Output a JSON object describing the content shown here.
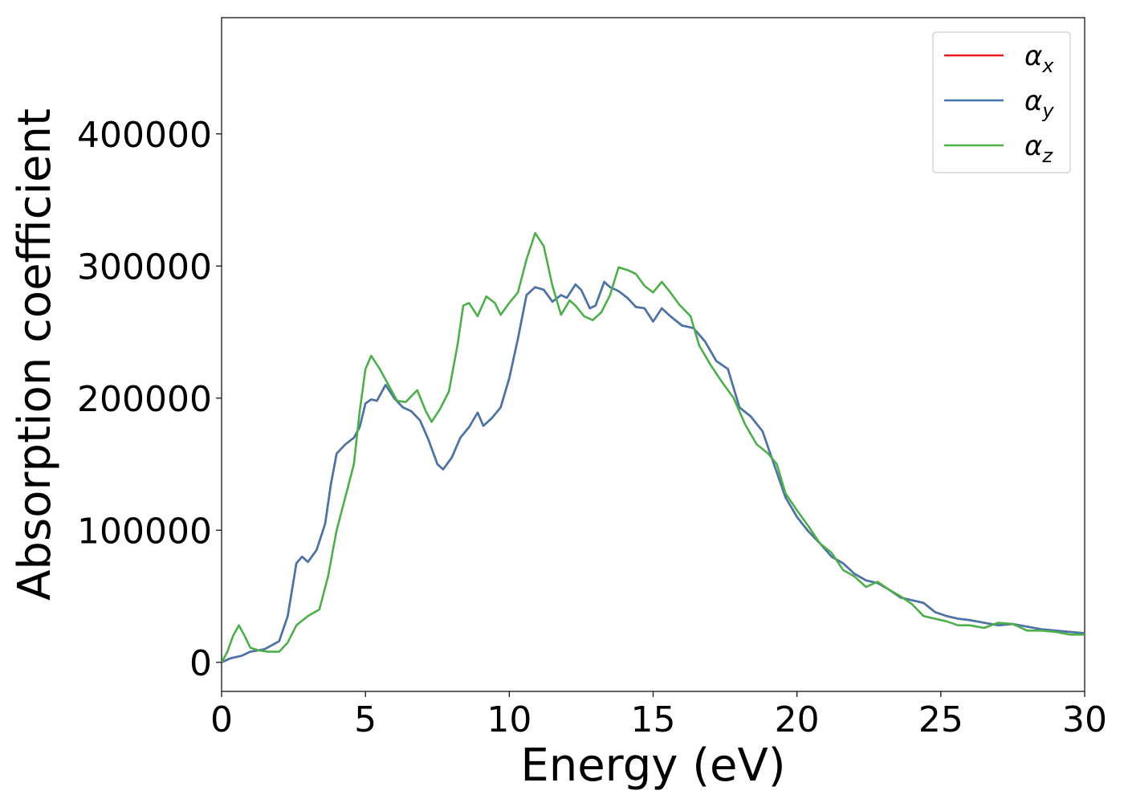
{
  "chart_data": {
    "type": "line",
    "title": "",
    "xlabel": "Energy (eV)",
    "ylabel": "Absorption coefficient",
    "xlim": [
      0,
      30
    ],
    "ylim": [
      -22000,
      488000
    ],
    "xticks": [
      0,
      5,
      10,
      15,
      20,
      25,
      30
    ],
    "yticks": [
      0,
      100000,
      200000,
      300000,
      400000
    ],
    "x_tick_labels": [
      "0",
      "5",
      "10",
      "15",
      "20",
      "25",
      "30"
    ],
    "y_tick_labels": [
      "0",
      "100000",
      "200000",
      "300000",
      "400000"
    ],
    "grid": false,
    "legend_position": "top-right",
    "series": [
      {
        "name": "α_x",
        "legend_main": "α",
        "legend_sub": "x",
        "color": "#e41a1c",
        "points": [
          [
            0,
            0
          ],
          [
            0.3,
            3000
          ],
          [
            0.7,
            5000
          ],
          [
            1.0,
            8000
          ],
          [
            1.5,
            10000
          ],
          [
            2.0,
            16000
          ],
          [
            2.3,
            35000
          ],
          [
            2.6,
            75000
          ],
          [
            2.8,
            80000
          ],
          [
            3.0,
            76000
          ],
          [
            3.3,
            85000
          ],
          [
            3.6,
            105000
          ],
          [
            3.8,
            135000
          ],
          [
            4.0,
            158000
          ],
          [
            4.3,
            165000
          ],
          [
            4.6,
            170000
          ],
          [
            4.8,
            178000
          ],
          [
            5.0,
            196000
          ],
          [
            5.2,
            199000
          ],
          [
            5.4,
            198000
          ],
          [
            5.7,
            210000
          ],
          [
            6.0,
            200000
          ],
          [
            6.3,
            193000
          ],
          [
            6.6,
            190000
          ],
          [
            6.9,
            183000
          ],
          [
            7.2,
            168000
          ],
          [
            7.5,
            150000
          ],
          [
            7.7,
            146000
          ],
          [
            8.0,
            155000
          ],
          [
            8.3,
            170000
          ],
          [
            8.6,
            178000
          ],
          [
            8.9,
            189000
          ],
          [
            9.1,
            179000
          ],
          [
            9.4,
            185000
          ],
          [
            9.7,
            193000
          ],
          [
            10.0,
            215000
          ],
          [
            10.3,
            245000
          ],
          [
            10.6,
            278000
          ],
          [
            10.9,
            284000
          ],
          [
            11.2,
            282000
          ],
          [
            11.5,
            273000
          ],
          [
            11.8,
            278000
          ],
          [
            12.0,
            276000
          ],
          [
            12.3,
            286000
          ],
          [
            12.5,
            282000
          ],
          [
            12.8,
            268000
          ],
          [
            13.0,
            270000
          ],
          [
            13.3,
            288000
          ],
          [
            13.5,
            284000
          ],
          [
            13.8,
            281000
          ],
          [
            14.1,
            276000
          ],
          [
            14.4,
            269000
          ],
          [
            14.7,
            268000
          ],
          [
            15.0,
            258000
          ],
          [
            15.3,
            268000
          ],
          [
            15.6,
            262000
          ],
          [
            16.0,
            255000
          ],
          [
            16.4,
            253000
          ],
          [
            16.8,
            243000
          ],
          [
            17.2,
            228000
          ],
          [
            17.6,
            222000
          ],
          [
            18.0,
            193000
          ],
          [
            18.4,
            186000
          ],
          [
            18.8,
            175000
          ],
          [
            19.2,
            150000
          ],
          [
            19.6,
            125000
          ],
          [
            20.0,
            110000
          ],
          [
            20.4,
            99000
          ],
          [
            20.8,
            90000
          ],
          [
            21.2,
            80000
          ],
          [
            21.6,
            75000
          ],
          [
            22.0,
            67000
          ],
          [
            22.4,
            62000
          ],
          [
            22.8,
            60000
          ],
          [
            23.2,
            55000
          ],
          [
            23.6,
            49000
          ],
          [
            24.0,
            47000
          ],
          [
            24.4,
            45000
          ],
          [
            24.8,
            38000
          ],
          [
            25.2,
            35000
          ],
          [
            25.6,
            33000
          ],
          [
            26.0,
            32000
          ],
          [
            26.5,
            30000
          ],
          [
            27.0,
            28000
          ],
          [
            27.5,
            29000
          ],
          [
            28.0,
            27000
          ],
          [
            28.5,
            25000
          ],
          [
            29.0,
            24000
          ],
          [
            29.5,
            23000
          ],
          [
            30.0,
            22000
          ]
        ]
      },
      {
        "name": "α_y",
        "legend_main": "α",
        "legend_sub": "y",
        "color": "#4677ab",
        "points": [
          [
            0,
            0
          ],
          [
            0.3,
            3000
          ],
          [
            0.7,
            5000
          ],
          [
            1.0,
            8000
          ],
          [
            1.5,
            10000
          ],
          [
            2.0,
            16000
          ],
          [
            2.3,
            35000
          ],
          [
            2.6,
            75000
          ],
          [
            2.8,
            80000
          ],
          [
            3.0,
            76000
          ],
          [
            3.3,
            85000
          ],
          [
            3.6,
            105000
          ],
          [
            3.8,
            135000
          ],
          [
            4.0,
            158000
          ],
          [
            4.3,
            165000
          ],
          [
            4.6,
            170000
          ],
          [
            4.8,
            178000
          ],
          [
            5.0,
            196000
          ],
          [
            5.2,
            199000
          ],
          [
            5.4,
            198000
          ],
          [
            5.7,
            210000
          ],
          [
            6.0,
            200000
          ],
          [
            6.3,
            193000
          ],
          [
            6.6,
            190000
          ],
          [
            6.9,
            183000
          ],
          [
            7.2,
            168000
          ],
          [
            7.5,
            150000
          ],
          [
            7.7,
            146000
          ],
          [
            8.0,
            155000
          ],
          [
            8.3,
            170000
          ],
          [
            8.6,
            178000
          ],
          [
            8.9,
            189000
          ],
          [
            9.1,
            179000
          ],
          [
            9.4,
            185000
          ],
          [
            9.7,
            193000
          ],
          [
            10.0,
            215000
          ],
          [
            10.3,
            245000
          ],
          [
            10.6,
            278000
          ],
          [
            10.9,
            284000
          ],
          [
            11.2,
            282000
          ],
          [
            11.5,
            273000
          ],
          [
            11.8,
            278000
          ],
          [
            12.0,
            276000
          ],
          [
            12.3,
            286000
          ],
          [
            12.5,
            282000
          ],
          [
            12.8,
            268000
          ],
          [
            13.0,
            270000
          ],
          [
            13.3,
            288000
          ],
          [
            13.5,
            284000
          ],
          [
            13.8,
            281000
          ],
          [
            14.1,
            276000
          ],
          [
            14.4,
            269000
          ],
          [
            14.7,
            268000
          ],
          [
            15.0,
            258000
          ],
          [
            15.3,
            268000
          ],
          [
            15.6,
            262000
          ],
          [
            16.0,
            255000
          ],
          [
            16.4,
            253000
          ],
          [
            16.8,
            243000
          ],
          [
            17.2,
            228000
          ],
          [
            17.6,
            222000
          ],
          [
            18.0,
            193000
          ],
          [
            18.4,
            186000
          ],
          [
            18.8,
            175000
          ],
          [
            19.2,
            150000
          ],
          [
            19.6,
            125000
          ],
          [
            20.0,
            110000
          ],
          [
            20.4,
            99000
          ],
          [
            20.8,
            90000
          ],
          [
            21.2,
            80000
          ],
          [
            21.6,
            75000
          ],
          [
            22.0,
            67000
          ],
          [
            22.4,
            62000
          ],
          [
            22.8,
            60000
          ],
          [
            23.2,
            55000
          ],
          [
            23.6,
            49000
          ],
          [
            24.0,
            47000
          ],
          [
            24.4,
            45000
          ],
          [
            24.8,
            38000
          ],
          [
            25.2,
            35000
          ],
          [
            25.6,
            33000
          ],
          [
            26.0,
            32000
          ],
          [
            26.5,
            30000
          ],
          [
            27.0,
            28000
          ],
          [
            27.5,
            29000
          ],
          [
            28.0,
            27000
          ],
          [
            28.5,
            25000
          ],
          [
            29.0,
            24000
          ],
          [
            29.5,
            23000
          ],
          [
            30.0,
            22000
          ]
        ]
      },
      {
        "name": "α_z",
        "legend_main": "α",
        "legend_sub": "z",
        "color": "#4daf4a",
        "points": [
          [
            0,
            0
          ],
          [
            0.2,
            8000
          ],
          [
            0.4,
            20000
          ],
          [
            0.6,
            28000
          ],
          [
            0.8,
            20000
          ],
          [
            1.0,
            11000
          ],
          [
            1.3,
            9000
          ],
          [
            1.6,
            8000
          ],
          [
            2.0,
            8000
          ],
          [
            2.3,
            15000
          ],
          [
            2.6,
            28000
          ],
          [
            3.0,
            35000
          ],
          [
            3.4,
            40000
          ],
          [
            3.7,
            65000
          ],
          [
            4.0,
            100000
          ],
          [
            4.3,
            125000
          ],
          [
            4.6,
            150000
          ],
          [
            4.8,
            190000
          ],
          [
            5.0,
            222000
          ],
          [
            5.2,
            232000
          ],
          [
            5.5,
            222000
          ],
          [
            5.8,
            210000
          ],
          [
            6.1,
            198000
          ],
          [
            6.4,
            197000
          ],
          [
            6.8,
            206000
          ],
          [
            7.1,
            190000
          ],
          [
            7.3,
            182000
          ],
          [
            7.6,
            192000
          ],
          [
            7.9,
            205000
          ],
          [
            8.2,
            240000
          ],
          [
            8.4,
            270000
          ],
          [
            8.6,
            272000
          ],
          [
            8.9,
            262000
          ],
          [
            9.2,
            277000
          ],
          [
            9.5,
            272000
          ],
          [
            9.7,
            263000
          ],
          [
            10.0,
            272000
          ],
          [
            10.3,
            280000
          ],
          [
            10.6,
            305000
          ],
          [
            10.9,
            325000
          ],
          [
            11.2,
            315000
          ],
          [
            11.5,
            285000
          ],
          [
            11.8,
            263000
          ],
          [
            12.1,
            274000
          ],
          [
            12.3,
            270000
          ],
          [
            12.6,
            262000
          ],
          [
            12.9,
            259000
          ],
          [
            13.2,
            265000
          ],
          [
            13.5,
            278000
          ],
          [
            13.8,
            299000
          ],
          [
            14.1,
            297000
          ],
          [
            14.4,
            294000
          ],
          [
            14.7,
            285000
          ],
          [
            15.0,
            280000
          ],
          [
            15.3,
            288000
          ],
          [
            15.6,
            280000
          ],
          [
            15.9,
            271000
          ],
          [
            16.3,
            262000
          ],
          [
            16.6,
            240000
          ],
          [
            17.0,
            225000
          ],
          [
            17.4,
            212000
          ],
          [
            17.8,
            200000
          ],
          [
            18.2,
            180000
          ],
          [
            18.6,
            165000
          ],
          [
            19.0,
            158000
          ],
          [
            19.3,
            150000
          ],
          [
            19.6,
            128000
          ],
          [
            20.0,
            115000
          ],
          [
            20.4,
            103000
          ],
          [
            20.8,
            90000
          ],
          [
            21.2,
            83000
          ],
          [
            21.6,
            70000
          ],
          [
            22.0,
            65000
          ],
          [
            22.4,
            57000
          ],
          [
            22.8,
            61000
          ],
          [
            23.2,
            55000
          ],
          [
            23.6,
            50000
          ],
          [
            24.0,
            44000
          ],
          [
            24.4,
            35000
          ],
          [
            24.8,
            33000
          ],
          [
            25.2,
            31000
          ],
          [
            25.6,
            28000
          ],
          [
            26.0,
            28000
          ],
          [
            26.5,
            26000
          ],
          [
            27.0,
            30000
          ],
          [
            27.5,
            29000
          ],
          [
            28.0,
            24000
          ],
          [
            28.5,
            24000
          ],
          [
            29.0,
            23000
          ],
          [
            29.5,
            21000
          ],
          [
            30.0,
            21000
          ]
        ]
      }
    ]
  }
}
